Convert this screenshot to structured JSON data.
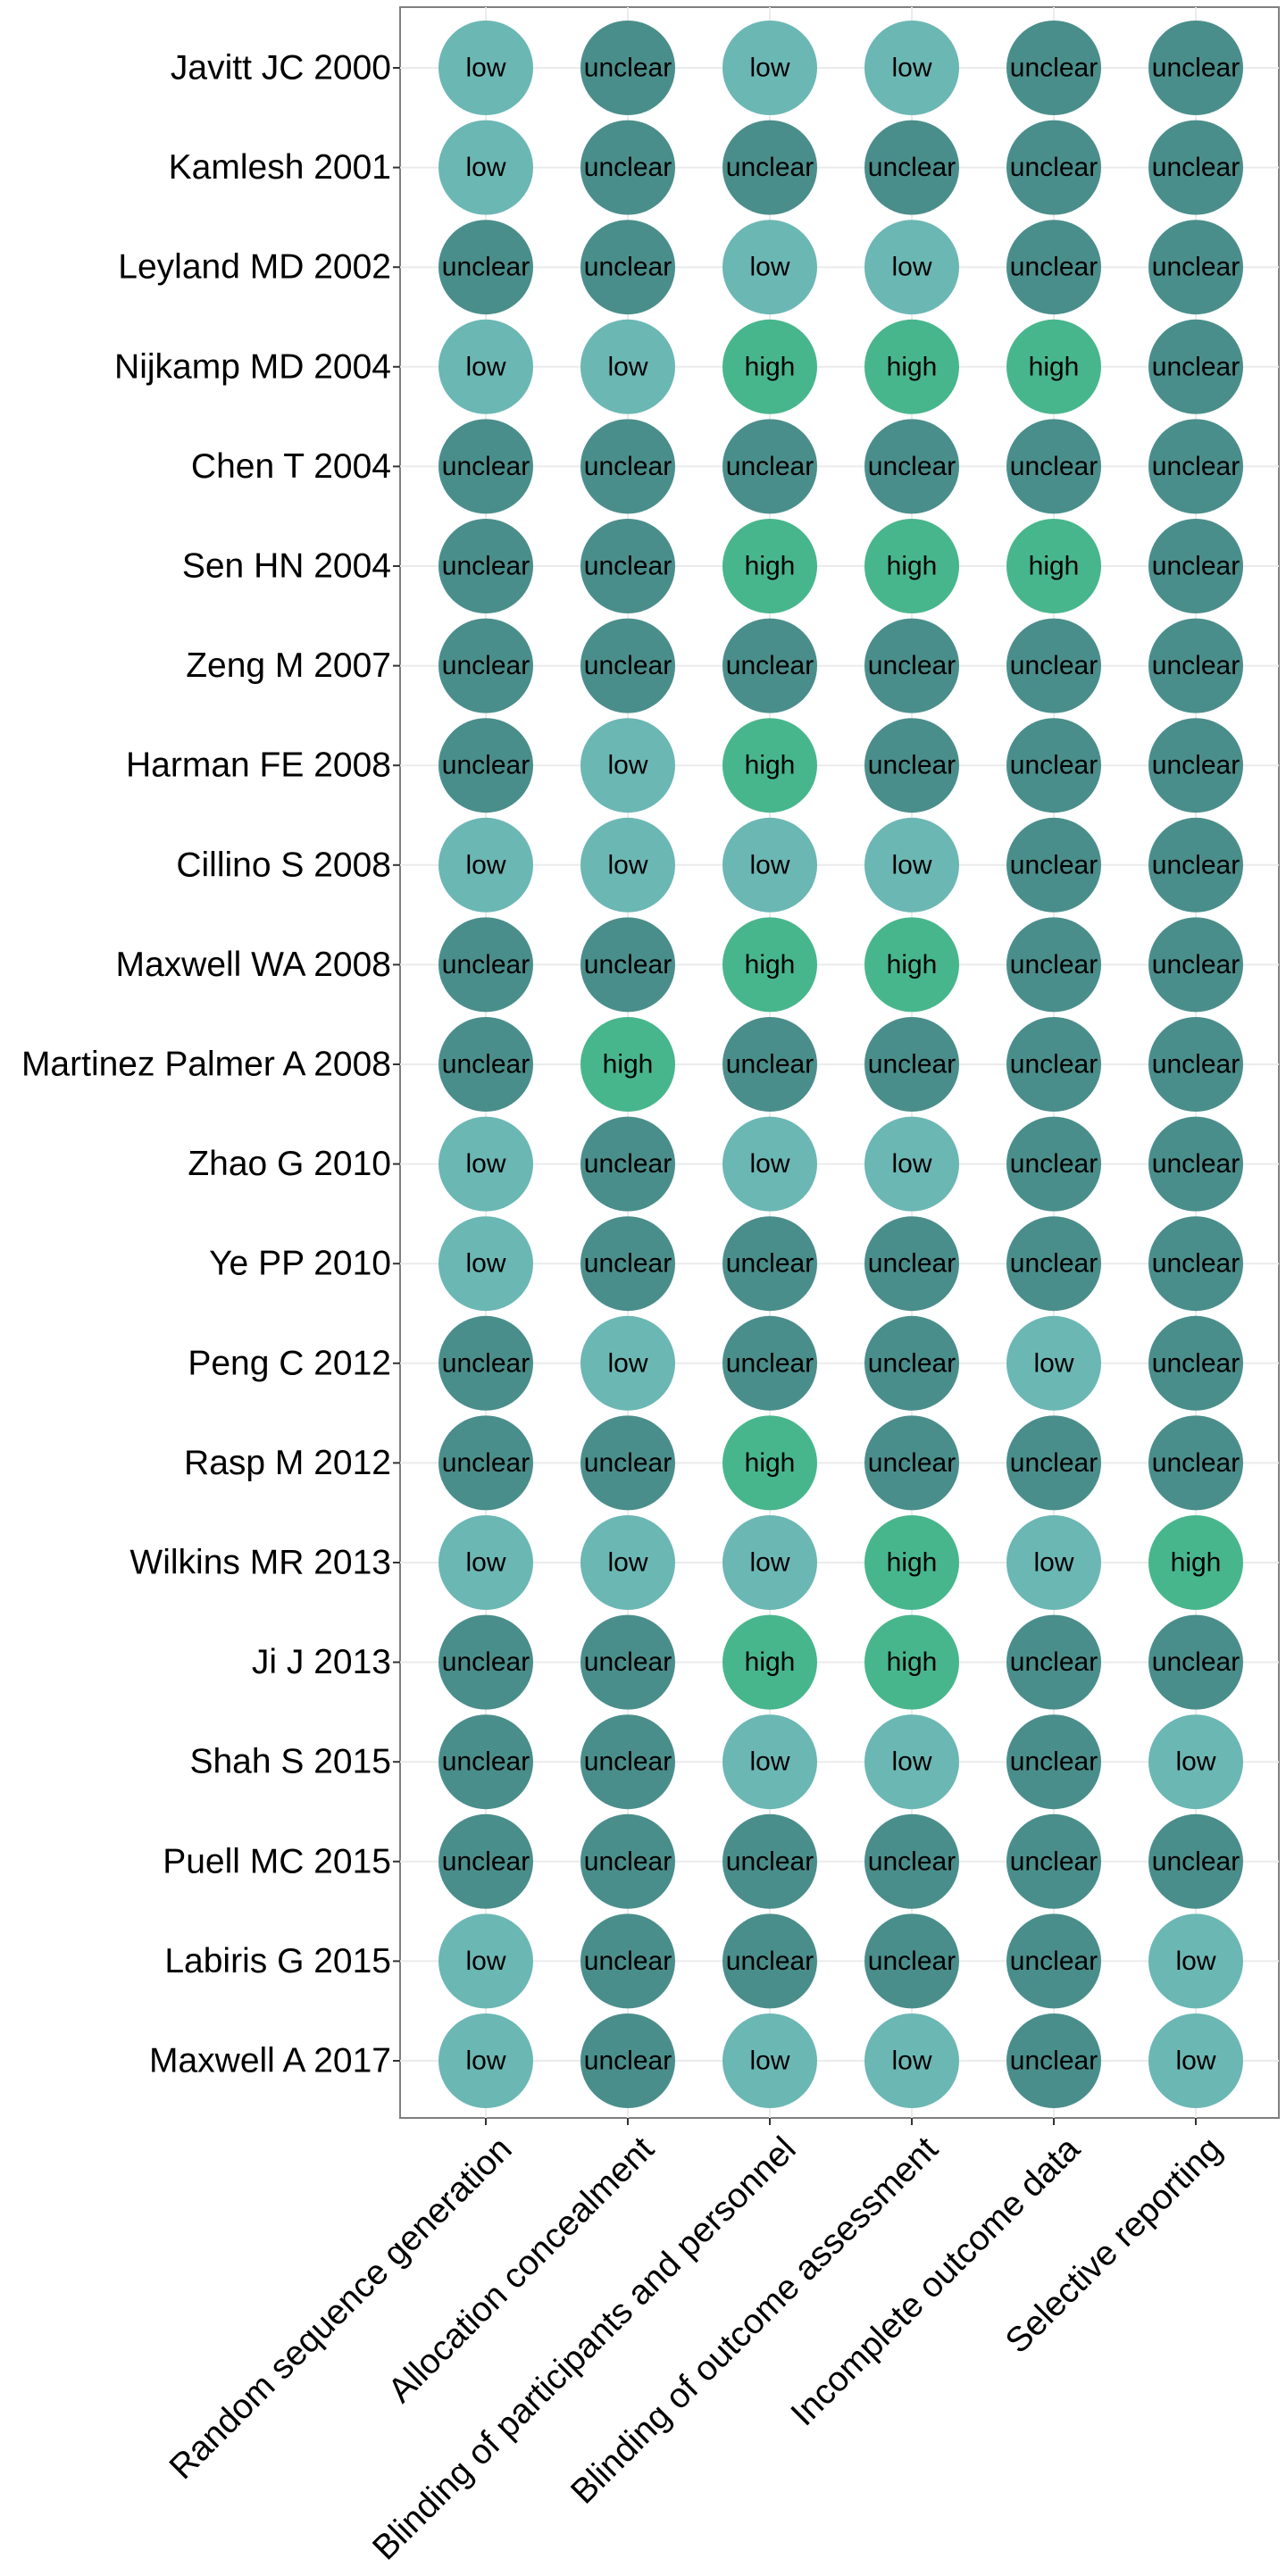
{
  "chart_data": {
    "type": "scatter",
    "title": "",
    "xlabel": "",
    "ylabel": "",
    "grid": true,
    "legend": "none",
    "colors": {
      "low": "#6bb7b4",
      "unclear": "#4a8e8b",
      "high": "#48b68d",
      "grid": "#ebebeb",
      "panel_border": "#7f7f7f",
      "text": "#000000"
    },
    "domains": [
      "Random sequence generation",
      "Allocation concealment",
      "Blinding of participants and personnel",
      "Blinding of outcome assessment",
      "Incomplete outcome data",
      "Selective reporting"
    ],
    "studies": [
      "Javitt JC 2000",
      "Kamlesh 2001",
      "Leyland MD 2002",
      "Nijkamp MD 2004",
      "Chen T 2004",
      "Sen HN 2004",
      "Zeng M 2007",
      "Harman FE 2008",
      "Cillino S 2008",
      "Maxwell WA 2008",
      "Martinez Palmer A 2008",
      "Zhao G 2010",
      "Ye PP 2010",
      "Peng C 2012",
      "Rasp M 2012",
      "Wilkins MR 2013",
      "Ji J 2013",
      "Shah S 2015",
      "Puell MC 2015",
      "Labiris G 2015",
      "Maxwell A 2017"
    ],
    "ratings": [
      [
        "low",
        "unclear",
        "low",
        "low",
        "unclear",
        "unclear"
      ],
      [
        "low",
        "unclear",
        "unclear",
        "unclear",
        "unclear",
        "unclear"
      ],
      [
        "unclear",
        "unclear",
        "low",
        "low",
        "unclear",
        "unclear"
      ],
      [
        "low",
        "low",
        "high",
        "high",
        "high",
        "unclear"
      ],
      [
        "unclear",
        "unclear",
        "unclear",
        "unclear",
        "unclear",
        "unclear"
      ],
      [
        "unclear",
        "unclear",
        "high",
        "high",
        "high",
        "unclear"
      ],
      [
        "unclear",
        "unclear",
        "unclear",
        "unclear",
        "unclear",
        "unclear"
      ],
      [
        "unclear",
        "low",
        "high",
        "unclear",
        "unclear",
        "unclear"
      ],
      [
        "low",
        "low",
        "low",
        "low",
        "unclear",
        "unclear"
      ],
      [
        "unclear",
        "unclear",
        "high",
        "high",
        "unclear",
        "unclear"
      ],
      [
        "unclear",
        "high",
        "unclear",
        "unclear",
        "unclear",
        "unclear"
      ],
      [
        "low",
        "unclear",
        "low",
        "low",
        "unclear",
        "unclear"
      ],
      [
        "low",
        "unclear",
        "unclear",
        "unclear",
        "unclear",
        "unclear"
      ],
      [
        "unclear",
        "low",
        "unclear",
        "unclear",
        "low",
        "unclear"
      ],
      [
        "unclear",
        "unclear",
        "high",
        "unclear",
        "unclear",
        "unclear"
      ],
      [
        "low",
        "low",
        "low",
        "high",
        "low",
        "high"
      ],
      [
        "unclear",
        "unclear",
        "high",
        "high",
        "unclear",
        "unclear"
      ],
      [
        "unclear",
        "unclear",
        "low",
        "low",
        "unclear",
        "low"
      ],
      [
        "unclear",
        "unclear",
        "unclear",
        "unclear",
        "unclear",
        "unclear"
      ],
      [
        "low",
        "unclear",
        "unclear",
        "unclear",
        "unclear",
        "low"
      ],
      [
        "low",
        "unclear",
        "low",
        "low",
        "unclear",
        "low"
      ]
    ]
  }
}
